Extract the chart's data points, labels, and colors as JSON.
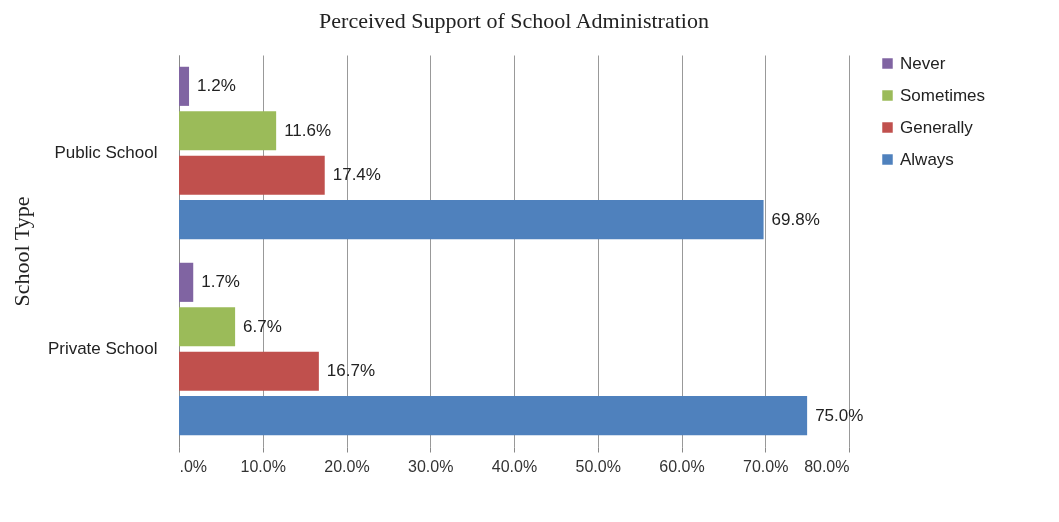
{
  "chart_data": {
    "type": "bar",
    "orientation": "horizontal",
    "title": "Perceived Support of School Administration",
    "ylabel": "School Type",
    "categories": [
      "Public School",
      "Private School"
    ],
    "series": [
      {
        "name": "Never",
        "color": "#8064a2",
        "values": [
          1.2,
          1.7
        ],
        "value_labels": [
          "1.2%",
          "1.7%"
        ]
      },
      {
        "name": "Sometimes",
        "color": "#9bbb59",
        "values": [
          11.6,
          6.7
        ],
        "value_labels": [
          "11.6%",
          "6.7%"
        ]
      },
      {
        "name": "Generally",
        "color": "#c0504d",
        "values": [
          17.4,
          16.7
        ],
        "value_labels": [
          "17.4%",
          "16.7%"
        ]
      },
      {
        "name": "Always",
        "color": "#4f81bd",
        "values": [
          69.8,
          75.0
        ],
        "value_labels": [
          "69.8%",
          "75.0%"
        ]
      }
    ],
    "xlim": [
      0,
      80
    ],
    "xticks": [
      {
        "value": 0,
        "label": ".0%"
      },
      {
        "value": 10,
        "label": "10.0%"
      },
      {
        "value": 20,
        "label": "20.0%"
      },
      {
        "value": 30,
        "label": "30.0%"
      },
      {
        "value": 40,
        "label": "40.0%"
      },
      {
        "value": 50,
        "label": "50.0%"
      },
      {
        "value": 60,
        "label": "60.0%"
      },
      {
        "value": 70,
        "label": "70.0%"
      },
      {
        "value": 80,
        "label": "80.0%"
      }
    ],
    "grid": "x",
    "legend": "right"
  }
}
